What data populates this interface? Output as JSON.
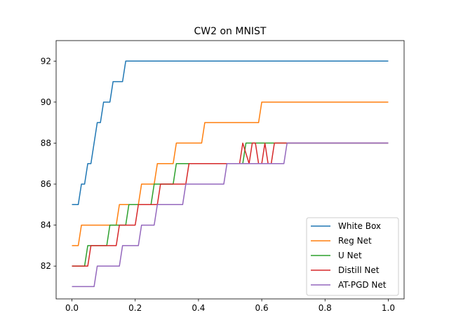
{
  "chart_data": {
    "type": "line",
    "title": "CW2 on MNIST",
    "xlabel": "",
    "ylabel": "",
    "xlim": [
      -0.05,
      1.05
    ],
    "ylim": [
      80.4,
      93.0
    ],
    "xticks": [
      0.0,
      0.2,
      0.4,
      0.6,
      0.8,
      1.0
    ],
    "xtick_labels": [
      "0.0",
      "0.2",
      "0.4",
      "0.6",
      "0.8",
      "1.0"
    ],
    "yticks": [
      82,
      84,
      86,
      88,
      90,
      92
    ],
    "ytick_labels": [
      "82",
      "84",
      "86",
      "88",
      "90",
      "92"
    ],
    "grid": false,
    "legend_position": "lower-right",
    "series": [
      {
        "name": "White Box",
        "color": "#1f77b4",
        "points": [
          [
            0.0,
            85
          ],
          [
            0.02,
            85
          ],
          [
            0.03,
            86
          ],
          [
            0.04,
            86
          ],
          [
            0.05,
            87
          ],
          [
            0.06,
            87
          ],
          [
            0.08,
            89
          ],
          [
            0.09,
            89
          ],
          [
            0.1,
            90
          ],
          [
            0.12,
            90
          ],
          [
            0.13,
            91
          ],
          [
            0.16,
            91
          ],
          [
            0.17,
            92
          ],
          [
            1.0,
            92
          ]
        ]
      },
      {
        "name": "Reg Net",
        "color": "#ff7f0e",
        "points": [
          [
            0.0,
            83
          ],
          [
            0.02,
            83
          ],
          [
            0.03,
            84
          ],
          [
            0.14,
            84
          ],
          [
            0.15,
            85
          ],
          [
            0.21,
            85
          ],
          [
            0.22,
            86
          ],
          [
            0.26,
            86
          ],
          [
            0.27,
            87
          ],
          [
            0.32,
            87
          ],
          [
            0.33,
            88
          ],
          [
            0.41,
            88
          ],
          [
            0.42,
            89
          ],
          [
            0.59,
            89
          ],
          [
            0.6,
            90
          ],
          [
            1.0,
            90
          ]
        ]
      },
      {
        "name": "U Net",
        "color": "#2ca02c",
        "points": [
          [
            0.0,
            82
          ],
          [
            0.04,
            82
          ],
          [
            0.05,
            83
          ],
          [
            0.11,
            83
          ],
          [
            0.12,
            84
          ],
          [
            0.17,
            84
          ],
          [
            0.18,
            85
          ],
          [
            0.25,
            85
          ],
          [
            0.26,
            86
          ],
          [
            0.32,
            86
          ],
          [
            0.33,
            87
          ],
          [
            0.54,
            87
          ],
          [
            0.55,
            88
          ],
          [
            1.0,
            88
          ]
        ]
      },
      {
        "name": "Distill Net",
        "color": "#d62728",
        "points": [
          [
            0.0,
            82
          ],
          [
            0.05,
            82
          ],
          [
            0.06,
            83
          ],
          [
            0.14,
            83
          ],
          [
            0.15,
            84
          ],
          [
            0.2,
            84
          ],
          [
            0.21,
            85
          ],
          [
            0.27,
            85
          ],
          [
            0.28,
            86
          ],
          [
            0.36,
            86
          ],
          [
            0.37,
            87
          ],
          [
            0.53,
            87
          ],
          [
            0.54,
            88
          ],
          [
            0.56,
            87
          ],
          [
            0.57,
            88
          ],
          [
            0.58,
            88
          ],
          [
            0.59,
            87
          ],
          [
            0.6,
            87
          ],
          [
            0.61,
            88
          ],
          [
            0.62,
            87
          ],
          [
            0.63,
            87
          ],
          [
            0.64,
            88
          ],
          [
            1.0,
            88
          ]
        ]
      },
      {
        "name": "AT-PGD Net",
        "color": "#9467bd",
        "points": [
          [
            0.0,
            81
          ],
          [
            0.07,
            81
          ],
          [
            0.08,
            82
          ],
          [
            0.15,
            82
          ],
          [
            0.16,
            83
          ],
          [
            0.21,
            83
          ],
          [
            0.22,
            84
          ],
          [
            0.26,
            84
          ],
          [
            0.27,
            85
          ],
          [
            0.35,
            85
          ],
          [
            0.36,
            86
          ],
          [
            0.48,
            86
          ],
          [
            0.49,
            87
          ],
          [
            0.67,
            87
          ],
          [
            0.68,
            88
          ],
          [
            1.0,
            88
          ]
        ]
      }
    ]
  }
}
